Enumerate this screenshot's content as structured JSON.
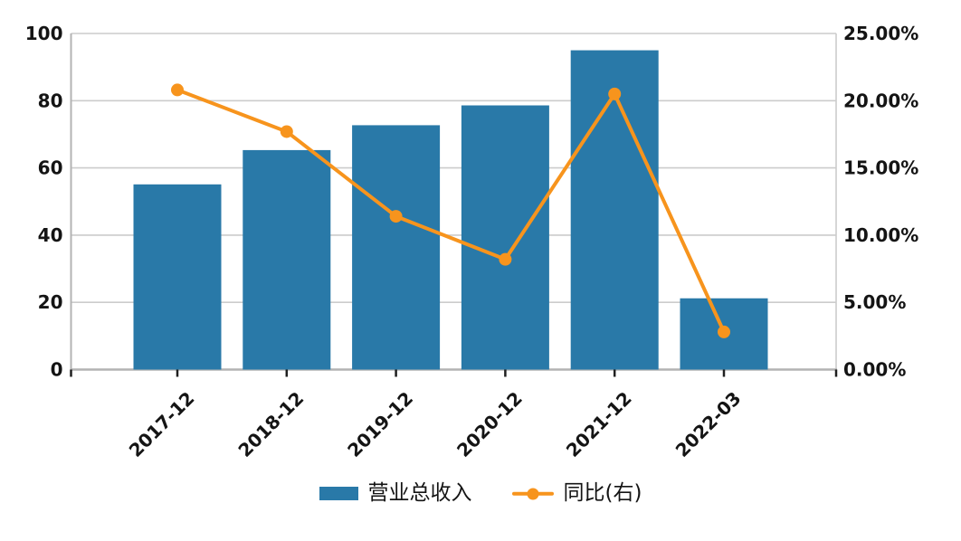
{
  "legend": {
    "revenue_label": "营业总收入",
    "yoy_label": "同比(右)"
  },
  "colors": {
    "bar": "#2979a8",
    "line": "#f7941d",
    "grid": "#cccccc",
    "axis_line": "#b3b3b3",
    "tick_mark": "#1f1f1f",
    "text": "#141414"
  },
  "chart_data": {
    "type": "bar",
    "subtype": "bar+line dual-axis",
    "categories": [
      "2017-12",
      "2018-12",
      "2019-12",
      "2020-12",
      "2021-12",
      "2022-03"
    ],
    "series": [
      {
        "name": "营业总收入",
        "type": "bar",
        "axis": "left",
        "color": "#2979a8",
        "values": [
          55.1,
          65.3,
          72.7,
          78.6,
          95.0,
          21.2
        ]
      },
      {
        "name": "同比(右)",
        "type": "line",
        "axis": "right",
        "color": "#f7941d",
        "values": [
          20.8,
          17.7,
          11.4,
          8.2,
          20.5,
          2.8
        ]
      }
    ],
    "title": "",
    "xlabel": "",
    "ylabel": "",
    "left_axis": {
      "min": 0,
      "max": 100,
      "step": 20,
      "tick_labels": [
        "0",
        "20",
        "40",
        "60",
        "80",
        "100"
      ]
    },
    "right_axis": {
      "min": 0,
      "max": 25,
      "step": 5,
      "tick_labels": [
        "0.00%",
        "5.00%",
        "10.00%",
        "15.00%",
        "20.00%",
        "25.00%"
      ]
    },
    "grid": true,
    "legend_position": "bottom",
    "x_tick_rotation": -45
  }
}
